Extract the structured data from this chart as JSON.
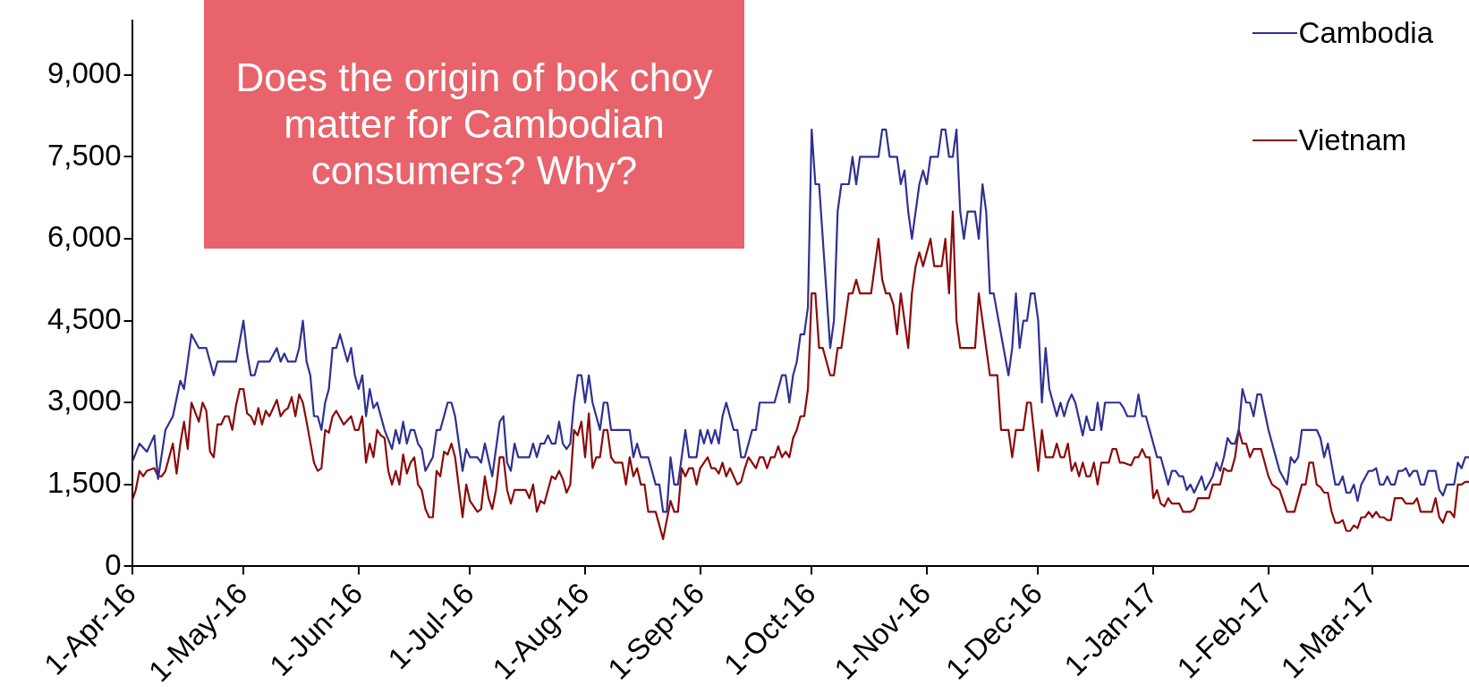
{
  "chart_data": {
    "type": "line",
    "annotations": [
      "Does the origin of bok choy matter for Cambodian consumers? Why?"
    ],
    "legend": "top right",
    "grid": false,
    "xlim": [
      "2016-04-01",
      "2017-03-27"
    ],
    "xticks": [
      {
        "value": "2016-04-01",
        "label": "1-Apr-16"
      },
      {
        "value": "2016-05-01",
        "label": "1-May-16"
      },
      {
        "value": "2016-06-01",
        "label": "1-Jun-16"
      },
      {
        "value": "2016-07-01",
        "label": "1-Jul-16"
      },
      {
        "value": "2016-08-01",
        "label": "1-Aug-16"
      },
      {
        "value": "2016-09-01",
        "label": "1-Sep-16"
      },
      {
        "value": "2016-10-01",
        "label": "1-Oct-16"
      },
      {
        "value": "2016-11-01",
        "label": "1-Nov-16"
      },
      {
        "value": "2016-12-01",
        "label": "1-Dec-16"
      },
      {
        "value": "2017-01-01",
        "label": "1-Jan-17"
      },
      {
        "value": "2017-02-01",
        "label": "1-Feb-17"
      },
      {
        "value": "2017-03-01",
        "label": "1-Mar-17"
      }
    ],
    "ylim": [
      0,
      10000
    ],
    "yticks": [
      0,
      {
        "value": 1500,
        "label": "1,500"
      },
      {
        "value": 3000,
        "label": "3,000"
      },
      {
        "value": 4500,
        "label": "4,500"
      },
      {
        "value": 6000,
        "label": "6,000"
      },
      {
        "value": 7500,
        "label": "7,500"
      },
      {
        "value": 9000,
        "label": "9,000"
      }
    ],
    "series": [
      {
        "name": "Cambodia",
        "color": "#2e3192",
        "x": [
          "2016-04-01",
          "2016-04-03",
          "2016-04-05",
          "2016-04-07",
          "2016-04-08",
          "2016-04-10",
          "2016-04-12",
          "2016-04-14",
          "2016-04-15",
          "2016-04-17",
          "2016-04-19",
          "2016-04-21",
          "2016-04-23",
          "2016-04-24",
          "2016-04-29",
          "2016-05-01",
          "2016-05-02",
          "2016-05-03",
          "2016-05-04",
          "2016-05-05",
          "2016-05-08",
          "2016-05-10",
          "2016-05-11",
          "2016-05-12",
          "2016-05-13",
          "2016-05-15",
          "2016-05-16",
          "2016-05-17",
          "2016-05-18",
          "2016-05-19",
          "2016-05-20",
          "2016-05-21",
          "2016-05-22",
          "2016-05-23",
          "2016-05-24",
          "2016-05-25",
          "2016-05-26",
          "2016-05-27",
          "2016-05-29",
          "2016-05-30",
          "2016-05-31",
          "2016-06-01",
          "2016-06-02",
          "2016-06-03",
          "2016-06-04",
          "2016-06-05",
          "2016-06-06",
          "2016-06-08",
          "2016-06-10",
          "2016-06-11",
          "2016-06-12",
          "2016-06-13",
          "2016-06-14",
          "2016-06-15",
          "2016-06-16",
          "2016-06-17",
          "2016-06-18",
          "2016-06-19",
          "2016-06-21",
          "2016-06-22",
          "2016-06-23",
          "2016-06-25",
          "2016-06-26",
          "2016-06-27",
          "2016-06-29",
          "2016-06-30",
          "2016-07-01",
          "2016-07-03",
          "2016-07-04",
          "2016-07-05",
          "2016-07-07",
          "2016-07-08",
          "2016-07-09",
          "2016-07-10",
          "2016-07-11",
          "2016-07-12",
          "2016-07-13",
          "2016-07-14",
          "2016-07-17",
          "2016-07-18",
          "2016-07-19",
          "2016-07-20",
          "2016-07-21",
          "2016-07-22",
          "2016-07-23",
          "2016-07-24",
          "2016-07-25",
          "2016-07-26",
          "2016-07-27",
          "2016-07-28",
          "2016-07-29",
          "2016-07-30",
          "2016-07-31",
          "2016-08-01",
          "2016-08-02",
          "2016-08-03",
          "2016-08-05",
          "2016-08-06",
          "2016-08-07",
          "2016-08-08",
          "2016-08-13",
          "2016-08-14",
          "2016-08-15",
          "2016-08-16",
          "2016-08-18",
          "2016-08-20",
          "2016-08-21",
          "2016-08-22",
          "2016-08-23",
          "2016-08-24",
          "2016-08-25",
          "2016-08-26",
          "2016-08-28",
          "2016-08-29",
          "2016-08-31",
          "2016-09-01",
          "2016-09-02",
          "2016-09-03",
          "2016-09-04",
          "2016-09-05",
          "2016-09-06",
          "2016-09-07",
          "2016-09-08",
          "2016-09-10",
          "2016-09-11",
          "2016-09-12",
          "2016-09-13",
          "2016-09-14",
          "2016-09-15",
          "2016-09-16",
          "2016-09-17",
          "2016-09-21",
          "2016-09-22",
          "2016-09-23",
          "2016-09-24",
          "2016-09-25",
          "2016-09-26",
          "2016-09-27",
          "2016-09-28",
          "2016-09-29",
          "2016-09-30",
          "2016-10-01",
          "2016-10-02",
          "2016-10-03",
          "2016-10-06",
          "2016-10-07",
          "2016-10-08",
          "2016-10-09",
          "2016-10-11",
          "2016-10-12",
          "2016-10-13",
          "2016-10-14",
          "2016-10-19",
          "2016-10-20",
          "2016-10-21",
          "2016-10-22",
          "2016-10-24",
          "2016-10-25",
          "2016-10-26",
          "2016-10-27",
          "2016-10-28",
          "2016-10-30",
          "2016-10-31",
          "2016-11-01",
          "2016-11-02",
          "2016-11-04",
          "2016-11-05",
          "2016-11-06",
          "2016-11-07",
          "2016-11-08",
          "2016-11-09",
          "2016-11-10",
          "2016-11-11",
          "2016-11-12",
          "2016-11-14",
          "2016-11-15",
          "2016-11-16",
          "2016-11-17",
          "2016-11-18",
          "2016-11-19",
          "2016-11-23",
          "2016-11-24",
          "2016-11-25",
          "2016-11-26",
          "2016-11-27",
          "2016-11-28",
          "2016-11-29",
          "2016-11-30",
          "2016-12-01",
          "2016-12-02",
          "2016-12-03",
          "2016-12-04",
          "2016-12-06",
          "2016-12-07",
          "2016-12-08",
          "2016-12-09",
          "2016-12-10",
          "2016-12-11",
          "2016-12-13",
          "2016-12-14",
          "2016-12-15",
          "2016-12-16",
          "2016-12-17",
          "2016-12-18",
          "2016-12-19",
          "2016-12-23",
          "2016-12-24",
          "2016-12-25",
          "2016-12-27",
          "2016-12-28",
          "2016-12-29",
          "2016-12-30",
          "2017-01-02",
          "2017-01-03",
          "2017-01-05",
          "2017-01-06",
          "2017-01-07",
          "2017-01-08",
          "2017-01-09",
          "2017-01-10",
          "2017-01-11",
          "2017-01-12",
          "2017-01-14",
          "2017-01-15",
          "2017-01-17",
          "2017-01-18",
          "2017-01-19",
          "2017-01-20",
          "2017-01-21",
          "2017-01-22",
          "2017-01-23",
          "2017-01-24",
          "2017-01-25",
          "2017-01-26",
          "2017-01-27",
          "2017-01-28",
          "2017-01-29",
          "2017-01-30",
          "2017-02-01",
          "2017-02-04",
          "2017-02-06",
          "2017-02-07",
          "2017-02-08",
          "2017-02-09",
          "2017-02-10",
          "2017-02-14",
          "2017-02-15",
          "2017-02-16",
          "2017-02-17",
          "2017-02-19",
          "2017-02-20",
          "2017-02-21",
          "2017-02-22",
          "2017-02-23",
          "2017-02-24",
          "2017-02-25",
          "2017-02-26",
          "2017-02-28",
          "2017-03-01",
          "2017-03-02",
          "2017-03-03",
          "2017-03-04",
          "2017-03-05",
          "2017-03-06",
          "2017-03-07",
          "2017-03-08",
          "2017-03-09",
          "2017-03-10",
          "2017-03-11",
          "2017-03-12",
          "2017-03-13",
          "2017-03-14",
          "2017-03-15",
          "2017-03-16",
          "2017-03-18",
          "2017-03-19",
          "2017-03-20",
          "2017-03-21",
          "2017-03-23",
          "2017-03-24",
          "2017-03-25",
          "2017-03-26",
          "2017-03-27"
        ],
        "values": [
          1900,
          2250,
          2100,
          2400,
          1600,
          2500,
          2750,
          3400,
          3250,
          4250,
          4000,
          4000,
          3500,
          3750,
          3750,
          4500,
          3900,
          3500,
          3500,
          3750,
          3750,
          4000,
          3750,
          3900,
          3750,
          3750,
          4000,
          4500,
          3750,
          3500,
          2750,
          2750,
          2500,
          3000,
          3250,
          4000,
          4000,
          4250,
          3750,
          4000,
          3500,
          3250,
          3500,
          2750,
          3250,
          2900,
          3000,
          2500,
          2150,
          2500,
          2250,
          2650,
          2250,
          2500,
          2500,
          2250,
          2150,
          1750,
          2000,
          2500,
          2500,
          3000,
          3000,
          2750,
          1750,
          2150,
          2000,
          2000,
          1900,
          2250,
          1650,
          2150,
          2650,
          2750,
          1900,
          1750,
          2250,
          2000,
          2000,
          2250,
          2000,
          2250,
          2250,
          2400,
          2250,
          2250,
          2650,
          2250,
          2150,
          2250,
          3000,
          3500,
          3500,
          3000,
          3500,
          3000,
          2500,
          3000,
          3000,
          2500,
          2500,
          2000,
          2250,
          2000,
          2000,
          1500,
          1500,
          1000,
          1000,
          2000,
          1500,
          1500,
          2500,
          2000,
          2000,
          2500,
          2250,
          2500,
          2250,
          2500,
          2250,
          2750,
          3000,
          2500,
          2500,
          2000,
          2000,
          2250,
          2500,
          2500,
          3000,
          3000,
          3250,
          3500,
          3500,
          3000,
          3500,
          3750,
          4250,
          4250,
          4750,
          8000,
          7000,
          7000,
          4000,
          4500,
          6500,
          7000,
          7000,
          7500,
          7000,
          7500,
          7500,
          8000,
          8000,
          7500,
          7500,
          7000,
          7250,
          6500,
          6000,
          7000,
          7250,
          7000,
          7500,
          7500,
          8000,
          8000,
          7500,
          7500,
          8000,
          6500,
          6000,
          6500,
          6500,
          6000,
          7000,
          6500,
          5000,
          5000,
          3500,
          4000,
          5000,
          4000,
          4500,
          4500,
          5000,
          5000,
          4500,
          3000,
          4000,
          3250,
          2750,
          3000,
          2750,
          3000,
          3150,
          3000,
          2400,
          2750,
          2500,
          2500,
          3000,
          2500,
          3000,
          3000,
          2900,
          2750,
          2750,
          3150,
          2750,
          2750,
          2000,
          2000,
          1500,
          1750,
          1750,
          1650,
          1650,
          1400,
          1500,
          1350,
          1650,
          1400,
          1650,
          1900,
          1750,
          2000,
          2350,
          2250,
          2250,
          2500,
          3250,
          3000,
          3000,
          2750,
          3150,
          3150,
          2500,
          1750,
          1500,
          2000,
          1900,
          2000,
          2500,
          2500,
          2350,
          2000,
          2250,
          1500,
          1500,
          1650,
          1350,
          1350,
          1500,
          1200,
          1500,
          1750,
          1750,
          1800,
          1500,
          1500,
          1650,
          1500,
          1500,
          1750,
          1750,
          1800,
          1650,
          1750,
          1750,
          1500,
          1500,
          1750,
          1750,
          1400,
          1300,
          1500,
          1500,
          1900,
          1800,
          2000,
          2000
        ]
      },
      {
        "name": "Vietnam",
        "color": "#8b0a0a",
        "x": [
          "2016-04-01",
          "2016-04-02",
          "2016-04-03",
          "2016-04-04",
          "2016-04-05",
          "2016-04-07",
          "2016-04-08",
          "2016-04-09",
          "2016-04-10",
          "2016-04-12",
          "2016-04-13",
          "2016-04-14",
          "2016-04-15",
          "2016-04-16",
          "2016-04-17",
          "2016-04-19",
          "2016-04-20",
          "2016-04-21",
          "2016-04-22",
          "2016-04-23",
          "2016-04-24",
          "2016-04-25",
          "2016-04-26",
          "2016-04-27",
          "2016-04-28",
          "2016-04-29",
          "2016-04-30",
          "2016-05-01",
          "2016-05-02",
          "2016-05-03",
          "2016-05-04",
          "2016-05-05",
          "2016-05-06",
          "2016-05-07",
          "2016-05-08",
          "2016-05-10",
          "2016-05-11",
          "2016-05-12",
          "2016-05-13",
          "2016-05-14",
          "2016-05-15",
          "2016-05-16",
          "2016-05-17",
          "2016-05-18",
          "2016-05-20",
          "2016-05-21",
          "2016-05-22",
          "2016-05-23",
          "2016-05-24",
          "2016-05-25",
          "2016-05-26",
          "2016-05-28",
          "2016-05-30",
          "2016-05-31",
          "2016-06-01",
          "2016-06-02",
          "2016-06-03",
          "2016-06-04",
          "2016-06-05",
          "2016-06-06",
          "2016-06-07",
          "2016-06-08",
          "2016-06-09",
          "2016-06-10",
          "2016-06-11",
          "2016-06-12",
          "2016-06-13",
          "2016-06-14",
          "2016-06-15",
          "2016-06-16",
          "2016-06-17",
          "2016-06-18",
          "2016-06-19",
          "2016-06-20",
          "2016-06-21",
          "2016-06-22",
          "2016-06-23",
          "2016-06-24",
          "2016-06-25",
          "2016-06-26",
          "2016-06-27",
          "2016-06-29",
          "2016-06-30",
          "2016-07-01",
          "2016-07-03",
          "2016-07-04",
          "2016-07-05",
          "2016-07-06",
          "2016-07-07",
          "2016-07-08",
          "2016-07-09",
          "2016-07-10",
          "2016-07-11",
          "2016-07-12",
          "2016-07-13",
          "2016-07-16",
          "2016-07-17",
          "2016-07-18",
          "2016-07-19",
          "2016-07-20",
          "2016-07-21",
          "2016-07-22",
          "2016-07-23",
          "2016-07-24",
          "2016-07-25",
          "2016-07-26",
          "2016-07-27",
          "2016-07-28",
          "2016-07-29",
          "2016-07-30",
          "2016-07-31",
          "2016-08-01",
          "2016-08-02",
          "2016-08-03",
          "2016-08-04",
          "2016-08-05",
          "2016-08-06",
          "2016-08-07",
          "2016-08-08",
          "2016-08-09",
          "2016-08-11",
          "2016-08-12",
          "2016-08-13",
          "2016-08-14",
          "2016-08-15",
          "2016-08-16",
          "2016-08-17",
          "2016-08-18",
          "2016-08-20",
          "2016-08-22",
          "2016-08-24",
          "2016-08-25",
          "2016-08-26",
          "2016-08-27",
          "2016-08-28",
          "2016-08-29",
          "2016-08-30",
          "2016-08-31",
          "2016-09-01",
          "2016-09-03",
          "2016-09-04",
          "2016-09-05",
          "2016-09-06",
          "2016-09-07",
          "2016-09-08",
          "2016-09-09",
          "2016-09-11",
          "2016-09-12",
          "2016-09-13",
          "2016-09-14",
          "2016-09-16",
          "2016-09-17",
          "2016-09-18",
          "2016-09-19",
          "2016-09-20",
          "2016-09-21",
          "2016-09-22",
          "2016-09-23",
          "2016-09-24",
          "2016-09-25",
          "2016-09-26",
          "2016-09-27",
          "2016-09-28",
          "2016-09-29",
          "2016-09-30",
          "2016-10-01",
          "2016-10-02",
          "2016-10-03",
          "2016-10-04",
          "2016-10-06",
          "2016-10-07",
          "2016-10-08",
          "2016-10-09",
          "2016-10-11",
          "2016-10-12",
          "2016-10-13",
          "2016-10-14",
          "2016-10-17",
          "2016-10-19",
          "2016-10-20",
          "2016-10-21",
          "2016-10-22",
          "2016-10-23",
          "2016-10-24",
          "2016-10-25",
          "2016-10-27",
          "2016-10-28",
          "2016-10-29",
          "2016-10-30",
          "2016-10-31",
          "2016-11-02",
          "2016-11-03",
          "2016-11-05",
          "2016-11-06",
          "2016-11-07",
          "2016-11-08",
          "2016-11-09",
          "2016-11-10",
          "2016-11-14",
          "2016-11-15",
          "2016-11-17",
          "2016-11-18",
          "2016-11-20",
          "2016-11-21",
          "2016-11-23",
          "2016-11-24",
          "2016-11-25",
          "2016-11-27",
          "2016-11-28",
          "2016-11-29",
          "2016-12-01",
          "2016-12-02",
          "2016-12-03",
          "2016-12-05",
          "2016-12-06",
          "2016-12-07",
          "2016-12-08",
          "2016-12-09",
          "2016-12-10",
          "2016-12-11",
          "2016-12-12",
          "2016-12-13",
          "2016-12-14",
          "2016-12-15",
          "2016-12-16",
          "2016-12-17",
          "2016-12-18",
          "2016-12-20",
          "2016-12-21",
          "2016-12-22",
          "2016-12-23",
          "2016-12-24",
          "2016-12-26",
          "2016-12-27",
          "2016-12-28",
          "2016-12-29",
          "2016-12-30",
          "2016-12-31",
          "2017-01-01",
          "2017-01-02",
          "2017-01-03",
          "2017-01-04",
          "2017-01-05",
          "2017-01-06",
          "2017-01-08",
          "2017-01-09",
          "2017-01-11",
          "2017-01-12",
          "2017-01-13",
          "2017-01-16",
          "2017-01-17",
          "2017-01-19",
          "2017-01-20",
          "2017-01-21",
          "2017-01-22",
          "2017-01-23",
          "2017-01-24",
          "2017-01-25",
          "2017-01-26",
          "2017-01-27",
          "2017-01-28",
          "2017-01-30",
          "2017-02-01",
          "2017-02-02",
          "2017-02-04",
          "2017-02-06",
          "2017-02-08",
          "2017-02-10",
          "2017-02-11",
          "2017-02-12",
          "2017-02-13",
          "2017-02-14",
          "2017-02-15",
          "2017-02-16",
          "2017-02-17",
          "2017-02-18",
          "2017-02-19",
          "2017-02-20",
          "2017-02-21",
          "2017-02-22",
          "2017-02-23",
          "2017-02-24",
          "2017-02-25",
          "2017-02-26",
          "2017-02-27",
          "2017-02-28",
          "2017-03-01",
          "2017-03-02",
          "2017-03-03",
          "2017-03-04",
          "2017-03-05",
          "2017-03-06",
          "2017-03-07",
          "2017-03-09",
          "2017-03-10",
          "2017-03-12",
          "2017-03-13",
          "2017-03-14",
          "2017-03-17",
          "2017-03-18",
          "2017-03-19",
          "2017-03-20",
          "2017-03-21",
          "2017-03-22",
          "2017-03-23",
          "2017-03-24",
          "2017-03-25",
          "2017-03-26",
          "2017-03-27"
        ],
        "values": [
          1200,
          1400,
          1750,
          1650,
          1750,
          1800,
          1650,
          1650,
          1750,
          2250,
          1700,
          2250,
          2650,
          2150,
          3000,
          2650,
          3000,
          2850,
          2100,
          2000,
          2600,
          2600,
          2750,
          2750,
          2500,
          2950,
          3250,
          3250,
          2800,
          2750,
          2600,
          2900,
          2600,
          2850,
          2750,
          3050,
          2750,
          2850,
          2900,
          3100,
          2750,
          3150,
          3000,
          2650,
          1900,
          1750,
          1800,
          2500,
          2450,
          2750,
          2850,
          2600,
          2750,
          2500,
          2500,
          2750,
          1900,
          2250,
          2000,
          2500,
          2400,
          2350,
          1750,
          1500,
          1750,
          1500,
          2050,
          1700,
          1900,
          2000,
          1500,
          1400,
          1050,
          900,
          900,
          1750,
          1650,
          2100,
          2050,
          2250,
          2000,
          900,
          1500,
          1200,
          1000,
          1050,
          1650,
          1250,
          1050,
          1400,
          2000,
          2000,
          1400,
          1150,
          1400,
          1400,
          1250,
          1500,
          1000,
          1200,
          1150,
          1400,
          1650,
          1600,
          1750,
          1600,
          1350,
          1500,
          2500,
          2400,
          2650,
          2000,
          2800,
          1800,
          2000,
          2000,
          2500,
          2500,
          2000,
          1900,
          1900,
          1500,
          2000,
          1650,
          1800,
          1500,
          1500,
          1000,
          1000,
          500,
          1200,
          1000,
          1000,
          1800,
          1650,
          1800,
          1800,
          1500,
          1800,
          2000,
          1800,
          1800,
          1700,
          1900,
          1650,
          1800,
          1500,
          1550,
          1800,
          2000,
          1800,
          2000,
          2000,
          1800,
          2000,
          2000,
          2200,
          2000,
          2100,
          2000,
          2350,
          2500,
          2750,
          2750,
          3250,
          5000,
          5000,
          4000,
          4000,
          3500,
          3500,
          4000,
          4000,
          5000,
          5000,
          5250,
          5000,
          5000,
          6000,
          5250,
          5000,
          5000,
          4800,
          4250,
          5000,
          4000,
          5000,
          5500,
          5750,
          5500,
          6000,
          5500,
          5500,
          6000,
          5000,
          6500,
          4500,
          4000,
          4000,
          5000,
          4000,
          3500,
          3500,
          2500,
          2500,
          2000,
          2500,
          2500,
          3000,
          3000,
          1750,
          2500,
          2000,
          2000,
          2250,
          2000,
          2000,
          2250,
          1750,
          1900,
          1650,
          1900,
          1650,
          1650,
          1900,
          1500,
          1900,
          1900,
          2150,
          2150,
          1900,
          1900,
          1850,
          2000,
          2000,
          2150,
          2000,
          2000,
          1250,
          1400,
          1150,
          1100,
          1250,
          1150,
          1150,
          1000,
          1000,
          1050,
          1250,
          1250,
          1500,
          1500,
          1800,
          1750,
          1750,
          2000,
          2500,
          2250,
          2250,
          2000,
          2150,
          2150,
          1650,
          1500,
          1400,
          1000,
          1000,
          1500,
          1500,
          1900,
          1900,
          1500,
          1450,
          1350,
          1350,
          1000,
          800,
          800,
          850,
          650,
          650,
          750,
          700,
          900,
          900,
          1000,
          900,
          1000,
          900,
          900,
          850,
          850,
          1250,
          1250,
          1150,
          1150,
          1250,
          1000,
          1000,
          1250,
          900,
          800,
          1000,
          1000,
          900,
          1500,
          1500,
          1550,
          1550
        ]
      }
    ]
  }
}
